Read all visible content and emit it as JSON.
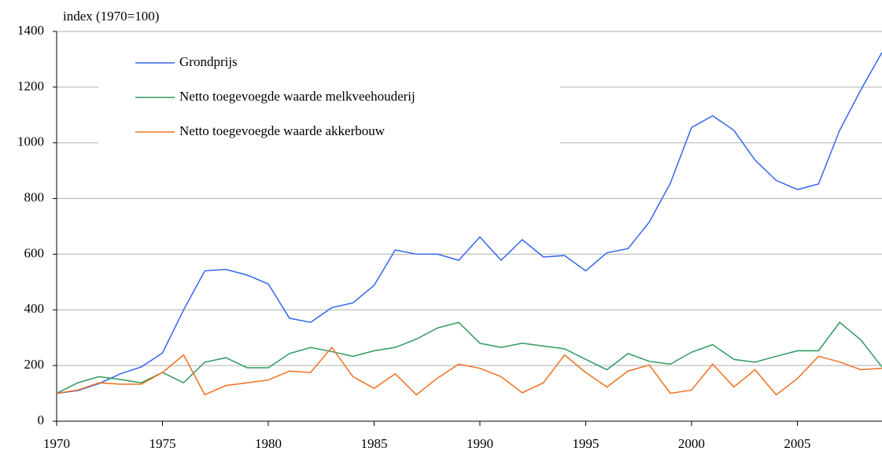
{
  "chart_data": {
    "type": "line",
    "y_label": "index (1970=100)",
    "x": [
      1970,
      1971,
      1972,
      1973,
      1974,
      1975,
      1976,
      1977,
      1978,
      1979,
      1980,
      1981,
      1982,
      1983,
      1984,
      1985,
      1986,
      1987,
      1988,
      1989,
      1990,
      1991,
      1992,
      1993,
      1994,
      1995,
      1996,
      1997,
      1998,
      1999,
      2000,
      2001,
      2002,
      2003,
      2004,
      2005,
      2006,
      2007,
      2008,
      2009
    ],
    "series": [
      {
        "name": "Grondprijs",
        "color": "#3366ee",
        "values": [
          100,
          110,
          135,
          170,
          195,
          245,
          400,
          540,
          545,
          525,
          493,
          370,
          355,
          408,
          425,
          488,
          615,
          600,
          600,
          578,
          662,
          578,
          652,
          590,
          595,
          540,
          605,
          620,
          715,
          855,
          1055,
          1097,
          1045,
          938,
          865,
          832,
          852,
          1045,
          1190,
          1325
        ]
      },
      {
        "name": "Netto toegevoegde waarde melkveehouderij",
        "color": "#2e9a5e",
        "values": [
          100,
          138,
          160,
          150,
          138,
          175,
          138,
          212,
          228,
          192,
          192,
          243,
          265,
          250,
          233,
          253,
          265,
          295,
          335,
          355,
          280,
          265,
          280,
          270,
          260,
          222,
          185,
          243,
          215,
          205,
          248,
          275,
          222,
          212,
          233,
          253,
          253,
          355,
          292,
          195
        ]
      },
      {
        "name": "Netto toegevoegde waarde akkerbouw",
        "color": "#f07020",
        "values": [
          100,
          112,
          138,
          133,
          133,
          175,
          238,
          95,
          128,
          138,
          148,
          180,
          175,
          265,
          160,
          118,
          170,
          95,
          155,
          205,
          190,
          160,
          102,
          138,
          238,
          175,
          123,
          180,
          202,
          100,
          112,
          205,
          123,
          185,
          95,
          153,
          233,
          213,
          185,
          190
        ]
      }
    ],
    "xlim": [
      1970,
      2009
    ],
    "xticks": [
      1970,
      1975,
      1980,
      1985,
      1990,
      1995,
      2000,
      2005
    ],
    "ylim": [
      0,
      1400
    ],
    "yticks": [
      0,
      200,
      400,
      600,
      800,
      1000,
      1200,
      1400
    ],
    "grid": true
  }
}
